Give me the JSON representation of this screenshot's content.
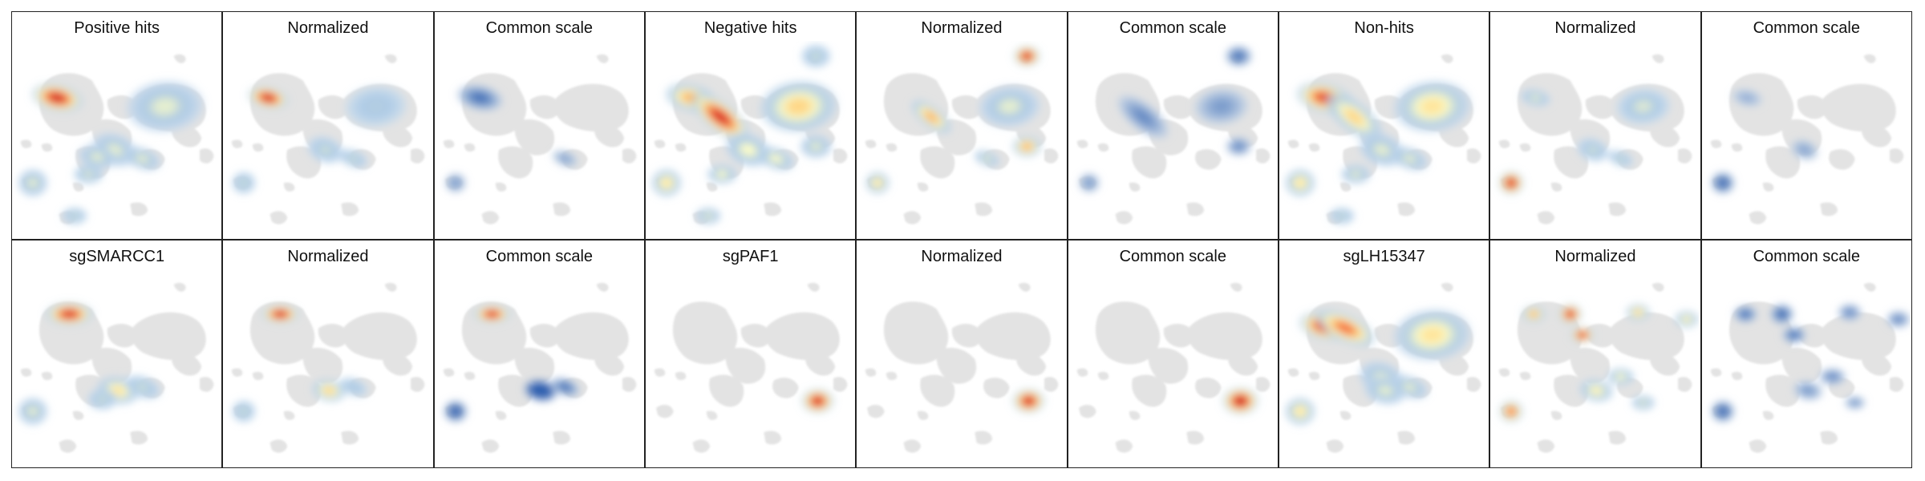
{
  "figure": {
    "rows": [
      {
        "panels": [
          {
            "title": "Positive hits",
            "hotspots": [
              {
                "ref": "A",
                "intensity": 0.95,
                "s": 1.0
              },
              {
                "ref": "B",
                "intensity": 0.3,
                "s": 1.0
              },
              {
                "ref": "C",
                "intensity": 0.3,
                "s": 1.0
              },
              {
                "ref": "D",
                "intensity": 0.3,
                "s": 1.0
              },
              {
                "ref": "F",
                "intensity": 0.3,
                "s": 1.0
              },
              {
                "ref": "G",
                "intensity": 0.3,
                "s": 1.0
              },
              {
                "ref": "H",
                "intensity": 0.25,
                "s": 1.0
              },
              {
                "ref": "I",
                "intensity": 0.28,
                "s": 1.0
              }
            ]
          },
          {
            "title": "Normalized",
            "hotspots": [
              {
                "ref": "A",
                "intensity": 0.95,
                "s": 0.8
              },
              {
                "ref": "B",
                "intensity": 0.2,
                "s": 0.8
              },
              {
                "ref": "C",
                "intensity": 0.25,
                "s": 0.8
              },
              {
                "ref": "D",
                "intensity": 0.25,
                "s": 0.8
              },
              {
                "ref": "G",
                "intensity": 0.25,
                "s": 0.8
              }
            ]
          },
          {
            "title": "Common scale",
            "hotspots": [
              {
                "ref": "A",
                "intensity": 0.2,
                "s": 0.9
              },
              {
                "ref": "D",
                "intensity": 0.12,
                "s": 0.7
              },
              {
                "ref": "G",
                "intensity": 0.1,
                "s": 0.7
              }
            ]
          },
          {
            "title": "Negative hits",
            "hotspots": [
              {
                "ref": "A",
                "intensity": 0.6,
                "s": 1.0
              },
              {
                "ref": "E",
                "intensity": 0.92,
                "s": 1.0
              },
              {
                "ref": "B",
                "intensity": 0.5,
                "s": 1.0
              },
              {
                "ref": "C",
                "intensity": 0.35,
                "s": 1.0
              },
              {
                "ref": "J",
                "intensity": 0.25,
                "s": 1.0
              },
              {
                "ref": "K",
                "intensity": 0.3,
                "s": 1.0
              },
              {
                "ref": "D",
                "intensity": 0.45,
                "s": 1.0
              },
              {
                "ref": "G",
                "intensity": 0.35,
                "s": 1.0
              },
              {
                "ref": "H",
                "intensity": 0.3,
                "s": 1.0
              },
              {
                "ref": "I",
                "intensity": 0.35,
                "s": 1.0
              }
            ]
          },
          {
            "title": "Normalized",
            "hotspots": [
              {
                "ref": "J",
                "intensity": 0.95,
                "s": 0.9
              },
              {
                "ref": "E",
                "intensity": 0.6,
                "s": 0.7
              },
              {
                "ref": "K",
                "intensity": 0.6,
                "s": 0.9
              },
              {
                "ref": "B",
                "intensity": 0.3,
                "s": 0.8
              },
              {
                "ref": "D",
                "intensity": 0.45,
                "s": 0.8
              },
              {
                "ref": "G",
                "intensity": 0.3,
                "s": 0.7
              }
            ]
          },
          {
            "title": "Common scale",
            "hotspots": [
              {
                "ref": "J",
                "intensity": 0.2,
                "s": 0.9
              },
              {
                "ref": "E",
                "intensity": 0.15,
                "s": 0.9
              },
              {
                "ref": "K",
                "intensity": 0.15,
                "s": 0.8
              },
              {
                "ref": "B",
                "intensity": 0.12,
                "s": 0.7
              },
              {
                "ref": "D",
                "intensity": 0.12,
                "s": 0.7
              }
            ]
          },
          {
            "title": "Non-hits",
            "hotspots": [
              {
                "ref": "A",
                "intensity": 0.85,
                "s": 1.1
              },
              {
                "ref": "E",
                "intensity": 0.5,
                "s": 1.0
              },
              {
                "ref": "B",
                "intensity": 0.45,
                "s": 1.0
              },
              {
                "ref": "C",
                "intensity": 0.3,
                "s": 1.0
              },
              {
                "ref": "D",
                "intensity": 0.45,
                "s": 1.0
              },
              {
                "ref": "G",
                "intensity": 0.3,
                "s": 1.0
              },
              {
                "ref": "H",
                "intensity": 0.25,
                "s": 1.0
              },
              {
                "ref": "I",
                "intensity": 0.3,
                "s": 1.0
              }
            ]
          },
          {
            "title": "Normalized",
            "hotspots": [
              {
                "ref": "D",
                "intensity": 0.95,
                "s": 0.85
              },
              {
                "ref": "A",
                "intensity": 0.3,
                "s": 0.6
              },
              {
                "ref": "B",
                "intensity": 0.28,
                "s": 0.7
              },
              {
                "ref": "C",
                "intensity": 0.25,
                "s": 0.7
              },
              {
                "ref": "G",
                "intensity": 0.25,
                "s": 0.7
              }
            ]
          },
          {
            "title": "Common scale",
            "hotspots": [
              {
                "ref": "D",
                "intensity": 0.22,
                "s": 0.8
              },
              {
                "ref": "A",
                "intensity": 0.08,
                "s": 0.6
              },
              {
                "ref": "C",
                "intensity": 0.1,
                "s": 0.6
              }
            ]
          }
        ]
      },
      {
        "panels": [
          {
            "title": "sgSMARCC1",
            "hotspots": [
              {
                "ref": "A2",
                "intensity": 0.92,
                "s": 1.0
              },
              {
                "ref": "L",
                "intensity": 0.45,
                "s": 1.0
              },
              {
                "ref": "D",
                "intensity": 0.3,
                "s": 1.0
              },
              {
                "ref": "G",
                "intensity": 0.25,
                "s": 1.0
              },
              {
                "ref": "M",
                "intensity": 0.25,
                "s": 1.0
              }
            ]
          },
          {
            "title": "Normalized",
            "hotspots": [
              {
                "ref": "A2",
                "intensity": 0.95,
                "s": 0.8
              },
              {
                "ref": "L",
                "intensity": 0.5,
                "s": 0.8
              },
              {
                "ref": "D",
                "intensity": 0.25,
                "s": 0.8
              },
              {
                "ref": "G",
                "intensity": 0.2,
                "s": 0.8
              }
            ]
          },
          {
            "title": "Common scale",
            "hotspots": [
              {
                "ref": "A2",
                "intensity": 0.9,
                "s": 0.8
              },
              {
                "ref": "L",
                "intensity": 0.5,
                "s": 0.8
              },
              {
                "ref": "D",
                "intensity": 0.25,
                "s": 0.8
              },
              {
                "ref": "G",
                "intensity": 0.2,
                "s": 0.8
              }
            ]
          },
          {
            "title": "sgPAF1",
            "hotspots": [
              {
                "ref": "K2",
                "intensity": 0.95,
                "s": 0.9
              }
            ]
          },
          {
            "title": "Normalized",
            "hotspots": [
              {
                "ref": "K2",
                "intensity": 0.95,
                "s": 0.9
              }
            ]
          },
          {
            "title": "Common scale",
            "hotspots": [
              {
                "ref": "K2",
                "intensity": 1.0,
                "s": 1.0
              }
            ]
          },
          {
            "title": "sgLH15347",
            "hotspots": [
              {
                "ref": "A",
                "intensity": 0.92,
                "s": 1.0
              },
              {
                "ref": "E2",
                "intensity": 0.75,
                "s": 1.0
              },
              {
                "ref": "B",
                "intensity": 0.45,
                "s": 1.0
              },
              {
                "ref": "C",
                "intensity": 0.3,
                "s": 1.0
              },
              {
                "ref": "D",
                "intensity": 0.45,
                "s": 1.0
              },
              {
                "ref": "L",
                "intensity": 0.3,
                "s": 1.0
              },
              {
                "ref": "G",
                "intensity": 0.3,
                "s": 1.0
              }
            ]
          },
          {
            "title": "Normalized",
            "hotspots": [
              {
                "ref": "N1",
                "intensity": 0.6,
                "s": 0.8
              },
              {
                "ref": "N2",
                "intensity": 0.92,
                "s": 0.8
              },
              {
                "ref": "N3",
                "intensity": 0.9,
                "s": 0.8
              },
              {
                "ref": "N4",
                "intensity": 0.5,
                "s": 0.8
              },
              {
                "ref": "N5",
                "intensity": 0.4,
                "s": 0.8
              },
              {
                "ref": "D",
                "intensity": 0.75,
                "s": 0.8
              },
              {
                "ref": "L",
                "intensity": 0.4,
                "s": 0.8
              },
              {
                "ref": "O",
                "intensity": 0.35,
                "s": 0.8
              },
              {
                "ref": "P",
                "intensity": 0.3,
                "s": 0.8
              }
            ]
          },
          {
            "title": "Common scale",
            "hotspots": [
              {
                "ref": "N1",
                "intensity": 0.2,
                "s": 0.8
              },
              {
                "ref": "N2",
                "intensity": 0.22,
                "s": 0.8
              },
              {
                "ref": "N3",
                "intensity": 0.2,
                "s": 0.8
              },
              {
                "ref": "N4",
                "intensity": 0.15,
                "s": 0.8
              },
              {
                "ref": "N5",
                "intensity": 0.15,
                "s": 0.8
              },
              {
                "ref": "D",
                "intensity": 0.22,
                "s": 0.8
              },
              {
                "ref": "L",
                "intensity": 0.12,
                "s": 0.7
              },
              {
                "ref": "O",
                "intensity": 0.15,
                "s": 0.8
              },
              {
                "ref": "P",
                "intensity": 0.12,
                "s": 0.7
              }
            ]
          }
        ]
      }
    ]
  }
}
